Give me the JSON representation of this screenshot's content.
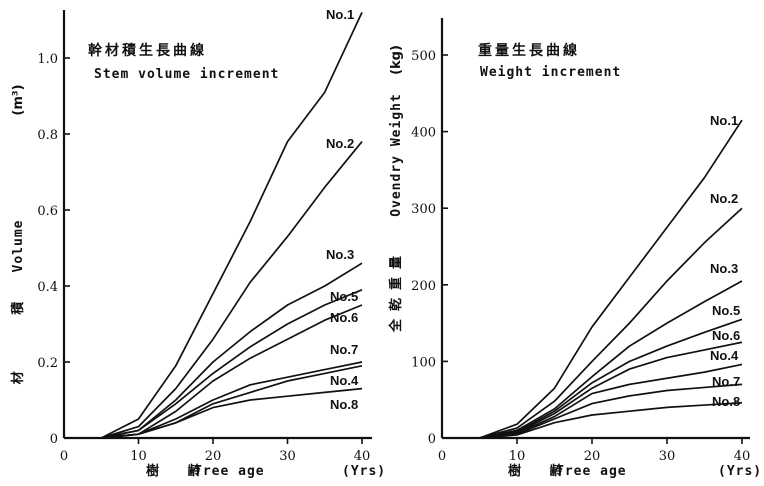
{
  "chart_data": [
    {
      "type": "line",
      "title_jp": "幹材積生長曲線",
      "title": "Stem volume increment",
      "ylabel": "Volume",
      "ylabel_jp": "材 積",
      "yunit": "(m³)",
      "xlabel_jp": "樹 齢",
      "xlabel": "Tree age",
      "xunit": "(Yrs)",
      "xlim": [
        0,
        42
      ],
      "ylim": [
        0,
        1.15
      ],
      "xticks": [
        "0",
        "10",
        "20",
        "30",
        "40"
      ],
      "yticks": [
        "0",
        "0.2",
        "0.4",
        "0.6",
        "0.8",
        "1.0"
      ],
      "x": [
        5,
        10,
        15,
        20,
        25,
        30,
        35,
        40
      ],
      "series": [
        {
          "name": "No.1",
          "values": [
            0,
            0.05,
            0.19,
            0.38,
            0.57,
            0.78,
            0.91,
            1.12
          ]
        },
        {
          "name": "No.2",
          "values": [
            0,
            0.03,
            0.13,
            0.26,
            0.41,
            0.53,
            0.66,
            0.78
          ]
        },
        {
          "name": "No.3",
          "values": [
            0,
            0.02,
            0.1,
            0.2,
            0.28,
            0.35,
            0.4,
            0.46
          ]
        },
        {
          "name": "No.5",
          "values": [
            0,
            0.02,
            0.09,
            0.17,
            0.24,
            0.3,
            0.35,
            0.39
          ]
        },
        {
          "name": "No.6",
          "values": [
            0,
            0.01,
            0.07,
            0.15,
            0.21,
            0.26,
            0.31,
            0.35
          ]
        },
        {
          "name": "No.7",
          "values": [
            0,
            0.01,
            0.05,
            0.1,
            0.14,
            0.16,
            0.18,
            0.2
          ]
        },
        {
          "name": "No.4",
          "values": [
            0,
            0.01,
            0.04,
            0.09,
            0.12,
            0.15,
            0.17,
            0.19
          ]
        },
        {
          "name": "No.8",
          "values": [
            0,
            0.01,
            0.04,
            0.08,
            0.1,
            0.11,
            0.12,
            0.13
          ]
        }
      ]
    },
    {
      "type": "line",
      "title_jp": "重量生長曲線",
      "title": "Weight increment",
      "ylabel": "Ovendry Weight",
      "ylabel_jp": "全乾重量",
      "yunit": "(kg)",
      "xlabel_jp": "樹 齢",
      "xlabel": "Tree age",
      "xunit": "(Yrs)",
      "xlim": [
        0,
        42
      ],
      "ylim": [
        0,
        520
      ],
      "xticks": [
        "0",
        "10",
        "20",
        "30",
        "40"
      ],
      "yticks": [
        "0",
        "100",
        "200",
        "300",
        "400",
        "500"
      ],
      "x": [
        5,
        10,
        15,
        20,
        25,
        30,
        35,
        40
      ],
      "series": [
        {
          "name": "No.1",
          "values": [
            0,
            18,
            65,
            145,
            210,
            275,
            340,
            415
          ]
        },
        {
          "name": "No.2",
          "values": [
            0,
            13,
            48,
            100,
            150,
            205,
            255,
            300
          ]
        },
        {
          "name": "No.3",
          "values": [
            0,
            10,
            38,
            80,
            120,
            150,
            178,
            205
          ]
        },
        {
          "name": "No.5",
          "values": [
            0,
            8,
            35,
            72,
            100,
            120,
            138,
            155
          ]
        },
        {
          "name": "No.6",
          "values": [
            0,
            7,
            32,
            65,
            90,
            105,
            115,
            125
          ]
        },
        {
          "name": "No.4",
          "values": [
            0,
            6,
            28,
            58,
            70,
            78,
            86,
            96
          ]
        },
        {
          "name": "No.7",
          "values": [
            0,
            5,
            25,
            45,
            55,
            62,
            66,
            70
          ]
        },
        {
          "name": "No.8",
          "values": [
            0,
            4,
            20,
            30,
            35,
            40,
            43,
            46
          ]
        }
      ]
    }
  ]
}
